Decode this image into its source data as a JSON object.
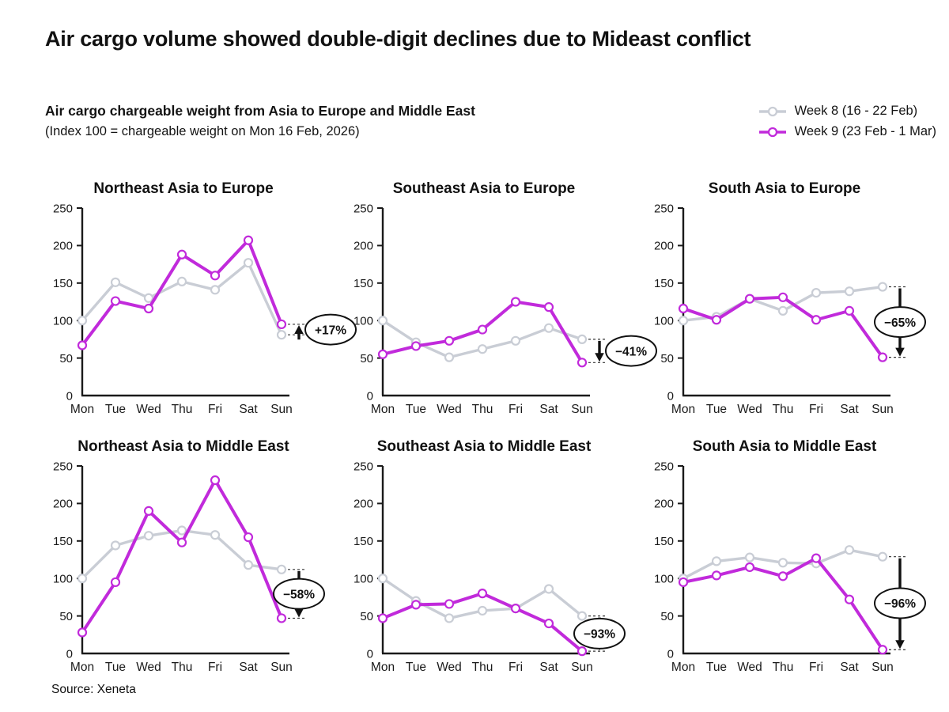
{
  "page": {
    "title": "Air cargo volume showed double-digit declines due to Mideast conflict",
    "subtitle_bold": "Air cargo chargeable weight from Asia to Europe and Middle East",
    "subtitle_note": "(Index 100 = chargeable weight on Mon 16 Feb, 2026)",
    "source": "Source: Xeneta"
  },
  "colors": {
    "week8": "#c9cdd5",
    "week9": "#c12adb",
    "axis": "#1a1a1a",
    "text": "#1a1a1a",
    "annotation": "#111111"
  },
  "legend": [
    {
      "id": "week8",
      "label": "Week 8 (16 - 22 Feb)",
      "color": "#c9cdd5"
    },
    {
      "id": "week9",
      "label": "Week 9 (23 Feb - 1 Mar)",
      "color": "#c12adb"
    }
  ],
  "chart_data": {
    "type": "line",
    "categories": [
      "Mon",
      "Tue",
      "Wed",
      "Thu",
      "Fri",
      "Sat",
      "Sun"
    ],
    "ylim": [
      0,
      250
    ],
    "y_ticks": [
      0,
      50,
      100,
      150,
      200,
      250
    ],
    "legend_position": "top-right",
    "grid": false,
    "series_names": [
      "Week 8 (16 - 22 Feb)",
      "Week 9 (23 Feb - 1 Mar)"
    ],
    "charts": [
      {
        "title": "Northeast Asia to Europe",
        "week8": [
          100,
          151,
          130,
          152,
          141,
          177,
          81
        ],
        "week9": [
          67,
          126,
          116,
          188,
          160,
          207,
          95
        ],
        "annotation": {
          "label": "+17%",
          "direction": "up"
        }
      },
      {
        "title": "Southeast Asia to Europe",
        "week8": [
          100,
          71,
          51,
          62,
          73,
          90,
          75
        ],
        "week9": [
          55,
          66,
          73,
          88,
          125,
          118,
          44
        ],
        "annotation": {
          "label": "−41%",
          "direction": "down"
        }
      },
      {
        "title": "South Asia to Europe",
        "week8": [
          100,
          105,
          129,
          113,
          137,
          139,
          145
        ],
        "week9": [
          116,
          101,
          129,
          131,
          101,
          113,
          51
        ],
        "annotation": {
          "label": "−65%",
          "direction": "down"
        }
      },
      {
        "title": "Northeast Asia to Middle East",
        "week8": [
          100,
          144,
          157,
          164,
          158,
          118,
          112
        ],
        "week9": [
          28,
          95,
          190,
          148,
          231,
          155,
          47
        ],
        "annotation": {
          "label": "−58%",
          "direction": "down"
        }
      },
      {
        "title": "Southeast Asia to Middle East",
        "week8": [
          100,
          70,
          47,
          57,
          60,
          86,
          50
        ],
        "week9": [
          47,
          65,
          66,
          80,
          60,
          40,
          3
        ],
        "annotation": {
          "label": "−93%",
          "direction": "down"
        }
      },
      {
        "title": "South Asia to Middle East",
        "week8": [
          100,
          123,
          128,
          121,
          120,
          138,
          129
        ],
        "week9": [
          95,
          104,
          115,
          103,
          127,
          72,
          5
        ],
        "annotation": {
          "label": "−96%",
          "direction": "down"
        }
      }
    ]
  }
}
